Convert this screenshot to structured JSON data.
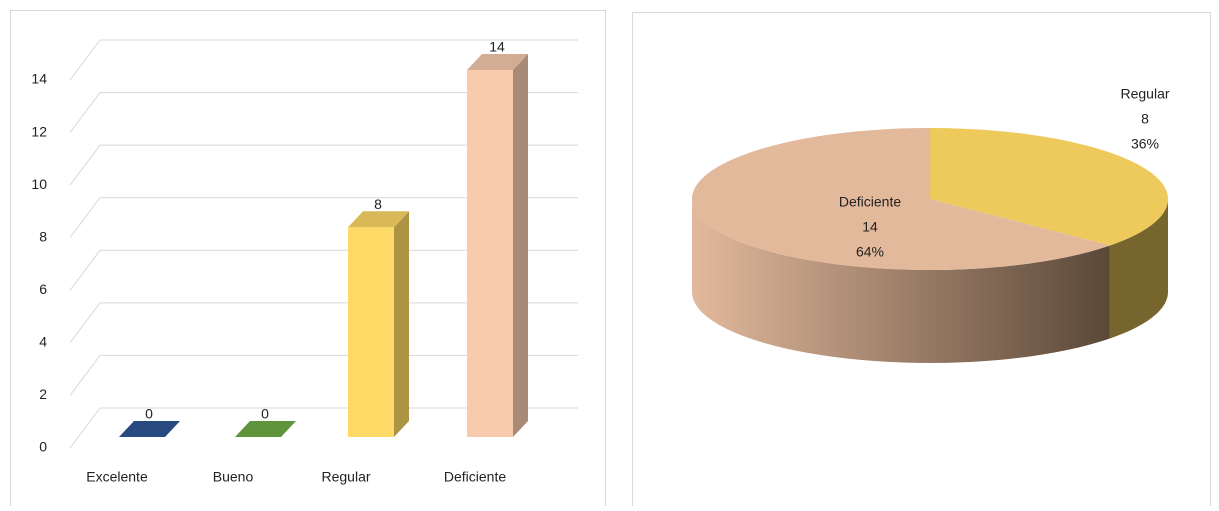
{
  "chart_data": [
    {
      "type": "bar3d",
      "categories": [
        "Excelente",
        "Bueno",
        "Regular",
        "Deficiente"
      ],
      "values": [
        0,
        0,
        8,
        14
      ],
      "colors": [
        "#2f5597",
        "#70ad47",
        "#ffd966",
        "#f8cbad"
      ],
      "ylim": [
        0,
        14
      ],
      "yticks": [
        0,
        2,
        4,
        6,
        8,
        10,
        12,
        14
      ],
      "grid": true
    },
    {
      "type": "pie3d",
      "categories": [
        "Regular",
        "Deficiente"
      ],
      "values": [
        8,
        14
      ],
      "percent_labels": [
        "36%",
        "64%"
      ],
      "colors": [
        "#eeca5d",
        "#e3b99c"
      ]
    }
  ]
}
